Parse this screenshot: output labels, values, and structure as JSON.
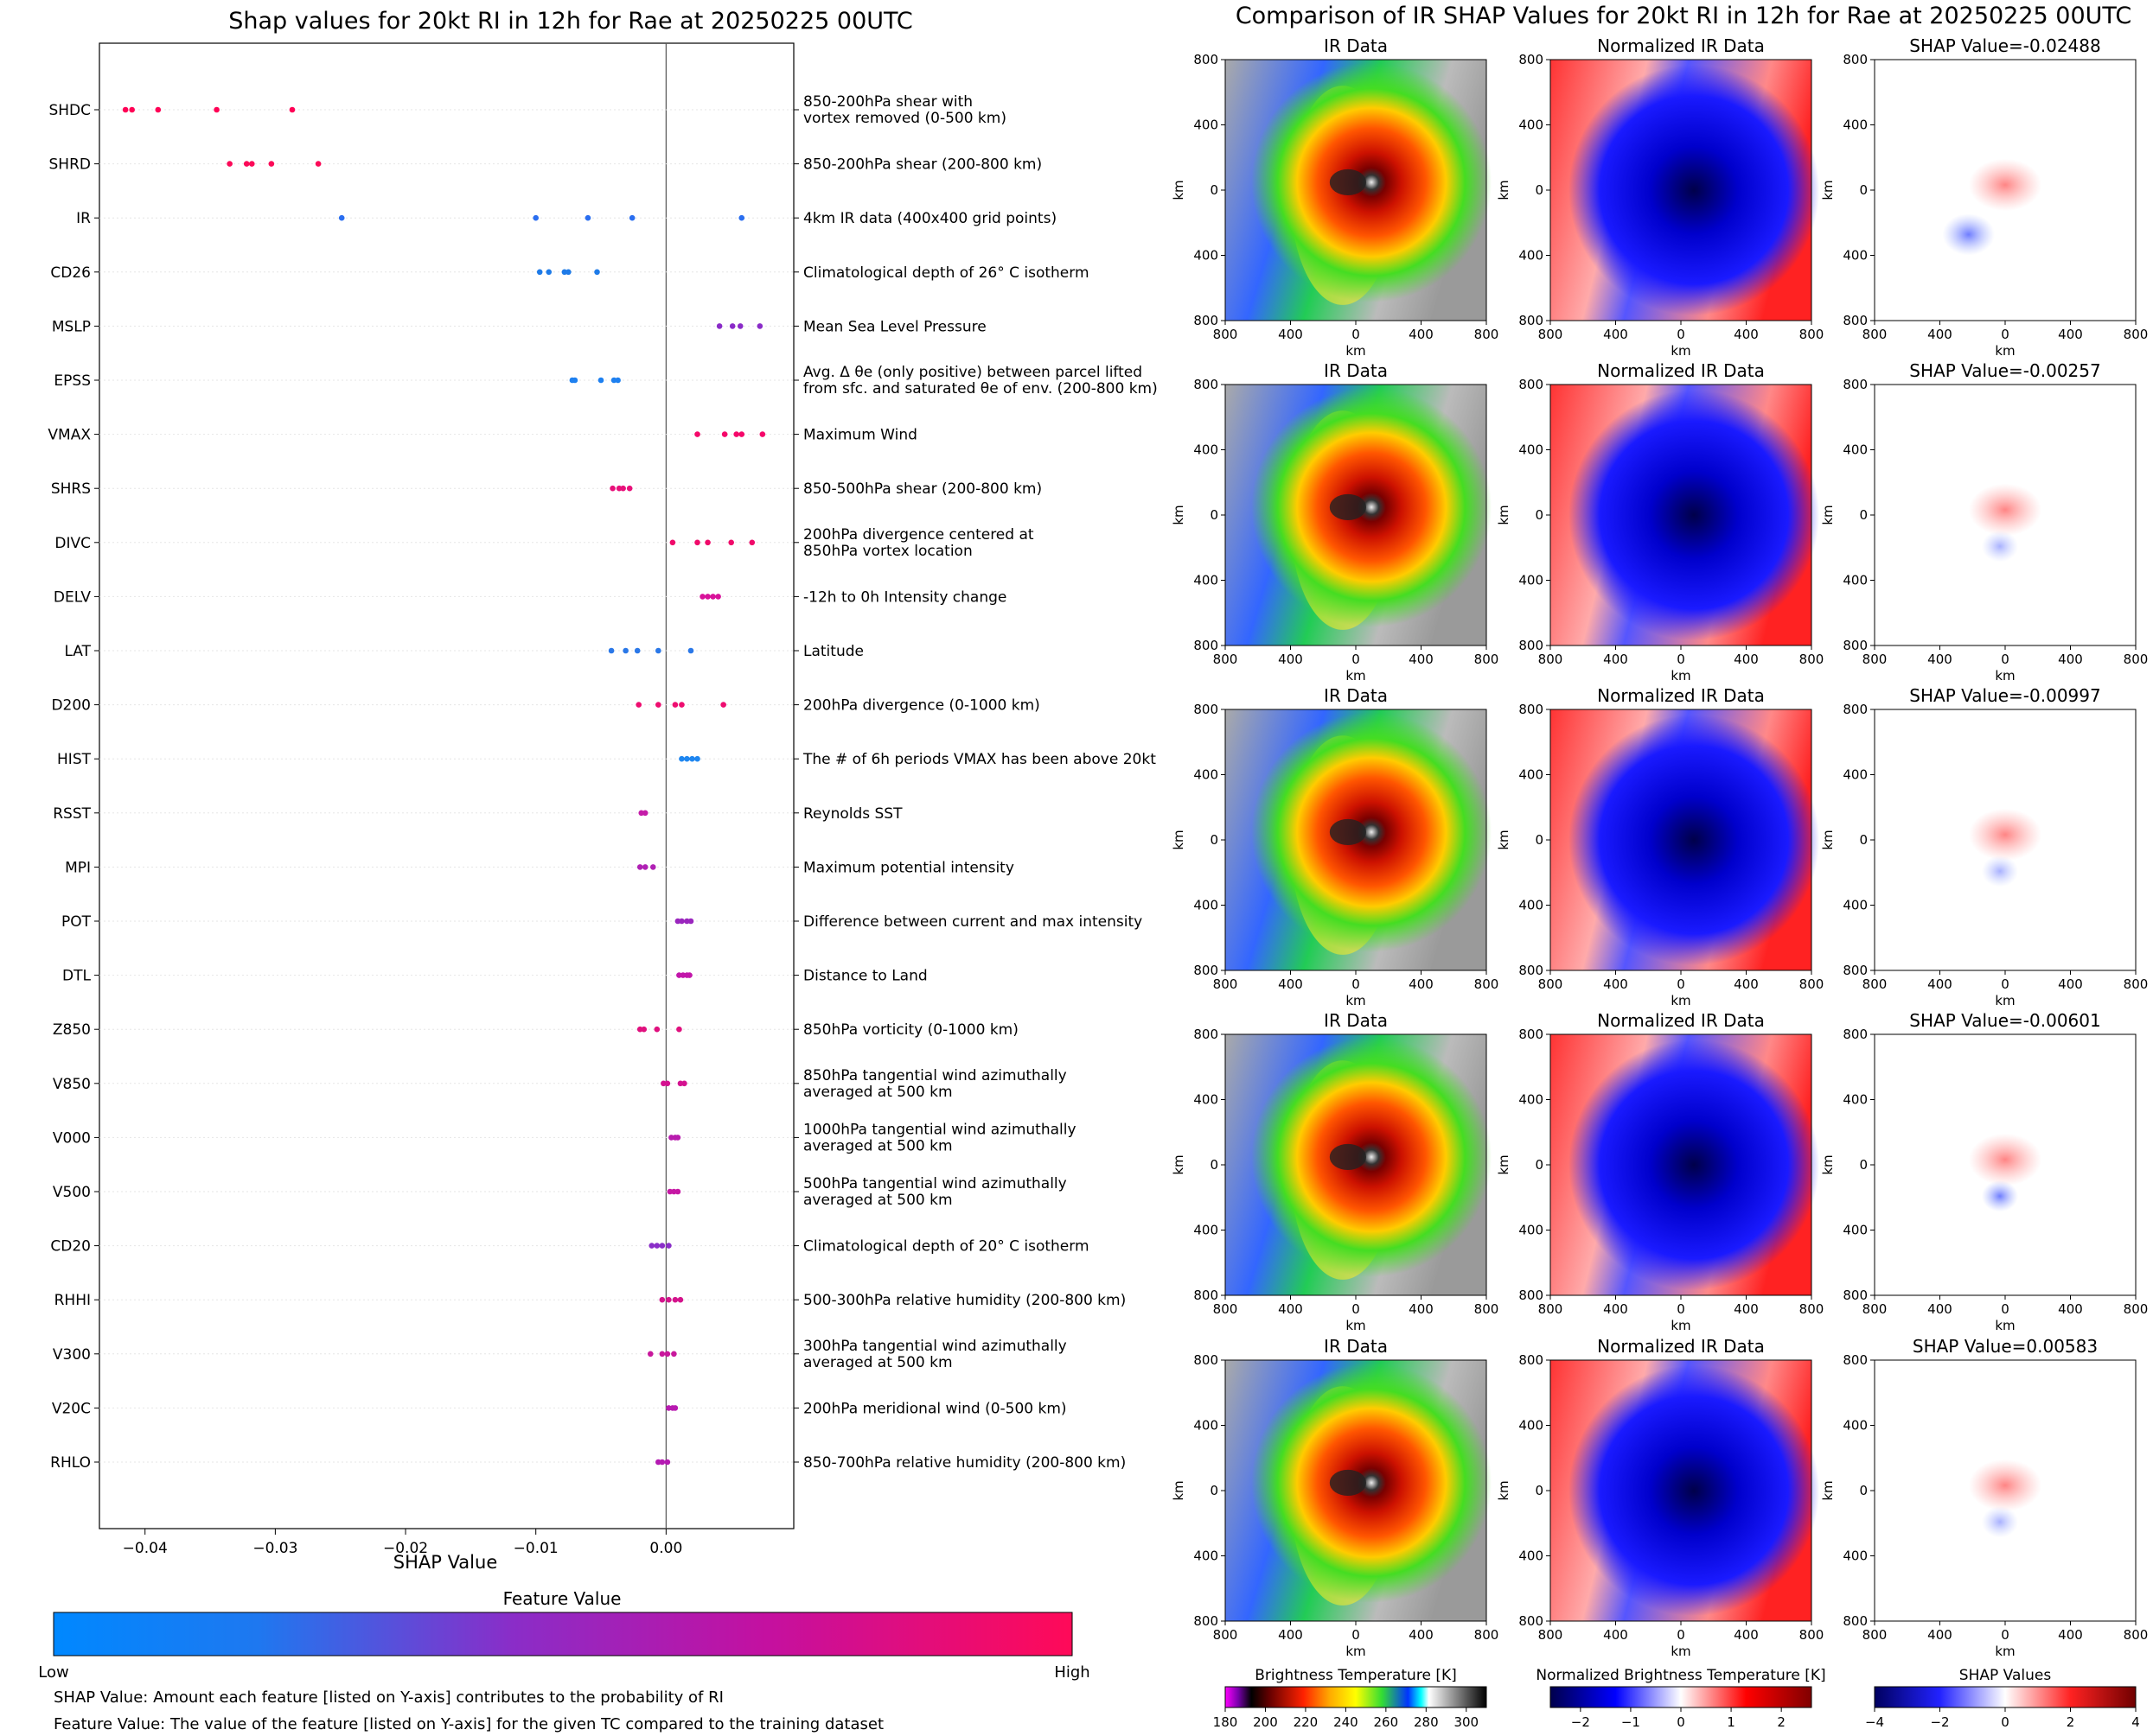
{
  "left_chart": {
    "chart_data": {
      "type": "scatter",
      "title": "Shap values for 20kt RI in 12h for Rae at 20250225 00UTC",
      "xlabel": "SHAP Value",
      "xlim": [
        -0.0435,
        0.0098
      ],
      "xticks": [
        "−0.04",
        "−0.03",
        "−0.02",
        "−0.01",
        "0.00"
      ],
      "xtick_values": [
        -0.04,
        -0.03,
        -0.02,
        -0.01,
        0.0
      ],
      "features": [
        {
          "name": "SHDC",
          "desc": [
            "850-200hPa shear with",
            "vortex removed (0-500 km)"
          ],
          "values": [
            -0.0415,
            -0.041,
            -0.039,
            -0.0345,
            -0.0287
          ],
          "color": "#ff0055"
        },
        {
          "name": "SHRD",
          "desc": [
            "850-200hPa shear (200-800 km)"
          ],
          "values": [
            -0.0335,
            -0.0322,
            -0.0318,
            -0.0303,
            -0.0267
          ],
          "color": "#fb0a58"
        },
        {
          "name": "IR",
          "desc": [
            "4km IR data (400x400 grid points)"
          ],
          "values": [
            -0.0249,
            -0.01,
            -0.006,
            -0.0026,
            0.0058
          ],
          "color": "#2a6ef0"
        },
        {
          "name": "CD26",
          "desc": [
            "Climatological depth of 26° C isotherm"
          ],
          "values": [
            -0.0097,
            -0.009,
            -0.0078,
            -0.0075,
            -0.0053
          ],
          "color": "#1e7be8"
        },
        {
          "name": "MSLP",
          "desc": [
            "Mean Sea Level Pressure"
          ],
          "values": [
            0.0041,
            0.0051,
            0.0057,
            0.0072
          ],
          "color": "#8a2bc8"
        },
        {
          "name": "EPSS",
          "desc": [
            "Avg. Δ θe (only positive) between parcel lifted",
            "from sfc. and saturated θe of env. (200-800 km)"
          ],
          "values": [
            -0.0072,
            -0.007,
            -0.005,
            -0.004,
            -0.0037
          ],
          "color": "#1e80f0"
        },
        {
          "name": "VMAX",
          "desc": [
            "Maximum Wind"
          ],
          "values": [
            0.0024,
            0.0045,
            0.0054,
            0.0058,
            0.0074
          ],
          "color": "#f5086a"
        },
        {
          "name": "SHRS",
          "desc": [
            "850-500hPa shear (200-800 km)"
          ],
          "values": [
            -0.0041,
            -0.0036,
            -0.0033,
            -0.0028
          ],
          "color": "#e8107a"
        },
        {
          "name": "DIVC",
          "desc": [
            "200hPa divergence centered at",
            "850hPa vortex location"
          ],
          "values": [
            0.0005,
            0.0024,
            0.0032,
            0.005,
            0.0066
          ],
          "color": "#f00a6a"
        },
        {
          "name": "DELV",
          "desc": [
            "-12h to 0h Intensity change"
          ],
          "values": [
            0.0028,
            0.0032,
            0.0036,
            0.004
          ],
          "color": "#d8129a"
        },
        {
          "name": "LAT",
          "desc": [
            "Latitude"
          ],
          "values": [
            -0.0042,
            -0.0031,
            -0.0022,
            -0.0006,
            0.0019
          ],
          "color": "#2a78e8"
        },
        {
          "name": "D200",
          "desc": [
            "200hPa divergence (0-1000 km)"
          ],
          "values": [
            -0.0021,
            -0.0006,
            0.0007,
            0.0012,
            0.0044
          ],
          "color": "#ee0e70"
        },
        {
          "name": "HIST",
          "desc": [
            "The # of 6h periods VMAX has been above 20kt"
          ],
          "values": [
            0.0012,
            0.0016,
            0.002,
            0.0024
          ],
          "color": "#1e86f0"
        },
        {
          "name": "RSST",
          "desc": [
            "Reynolds SST"
          ],
          "values": [
            -0.0019,
            -0.0016
          ],
          "color": "#c41ca8"
        },
        {
          "name": "MPI",
          "desc": [
            "Maximum potential intensity"
          ],
          "values": [
            -0.002,
            -0.0016,
            -0.001
          ],
          "color": "#b020b4"
        },
        {
          "name": "POT",
          "desc": [
            "Difference between current and max intensity"
          ],
          "values": [
            0.0009,
            0.0012,
            0.0016,
            0.0019
          ],
          "color": "#9a26be"
        },
        {
          "name": "DTL",
          "desc": [
            "Distance to Land"
          ],
          "values": [
            0.001,
            0.0013,
            0.0016,
            0.0018
          ],
          "color": "#c216aa"
        },
        {
          "name": "Z850",
          "desc": [
            "850hPa vorticity (0-1000 km)"
          ],
          "values": [
            -0.002,
            -0.0017,
            -0.0007,
            0.001
          ],
          "color": "#e0107e"
        },
        {
          "name": "V850",
          "desc": [
            "850hPa tangential wind azimuthally",
            "averaged at 500 km"
          ],
          "values": [
            -0.0002,
            0.0001,
            0.0011,
            0.0014
          ],
          "color": "#d41290"
        },
        {
          "name": "V000",
          "desc": [
            "1000hPa tangential wind azimuthally",
            "averaged at 500 km"
          ],
          "values": [
            0.0004,
            0.0007,
            0.0009
          ],
          "color": "#b81cae"
        },
        {
          "name": "V500",
          "desc": [
            "500hPa tangential wind azimuthally",
            "averaged at 500 km"
          ],
          "values": [
            0.0003,
            0.0006,
            0.0009
          ],
          "color": "#c618a4"
        },
        {
          "name": "CD20",
          "desc": [
            "Climatological depth of 20° C isotherm"
          ],
          "values": [
            -0.0011,
            -0.0007,
            -0.0003,
            0.0002
          ],
          "color": "#8a2ec8"
        },
        {
          "name": "RHHI",
          "desc": [
            "500-300hPa relative humidity (200-800 km)"
          ],
          "values": [
            -0.0003,
            0.0002,
            0.0007,
            0.0011
          ],
          "color": "#d4148c"
        },
        {
          "name": "V300",
          "desc": [
            "300hPa tangential wind azimuthally",
            "averaged at 500 km"
          ],
          "values": [
            -0.0012,
            -0.0003,
            0.0001,
            0.0006
          ],
          "color": "#c8189c"
        },
        {
          "name": "V20C",
          "desc": [
            "200hPa meridional wind (0-500 km)"
          ],
          "values": [
            0.0002,
            0.0005,
            0.0007
          ],
          "color": "#b81ab0"
        },
        {
          "name": "RHLO",
          "desc": [
            "850-700hPa relative humidity (200-800 km)"
          ],
          "values": [
            -0.0006,
            -0.0003,
            0.0001
          ],
          "color": "#b41ab2"
        }
      ]
    },
    "colorbar": {
      "title": "Feature Value",
      "low": "Low",
      "high": "High",
      "colors": [
        "#0088ff",
        "#1e78f0",
        "#8a2dc8",
        "#c410a0",
        "#ff0a58"
      ]
    },
    "notes": [
      "SHAP Value: Amount each feature [listed on Y-axis] contributes to the probability of RI",
      "Feature Value: The value of the feature [listed on Y-axis] for the given TC compared to the training dataset"
    ]
  },
  "right_panel": {
    "title": "Comparison of IR SHAP Values for 20kt RI in 12h for Rae at 20250225 00UTC",
    "col_titles": [
      "IR Data",
      "Normalized IR Data"
    ],
    "shap_titles": [
      "SHAP Value=-0.02488",
      "SHAP Value=-0.00257",
      "SHAP Value=-0.00997",
      "SHAP Value=-0.00601",
      "SHAP Value=0.00583"
    ],
    "axis_unit": "km",
    "axis_ticks": [
      "800",
      "400",
      "0",
      "400",
      "800"
    ],
    "colorbars": [
      {
        "title": "Brightness Temperature [K]",
        "ticks": [
          "180",
          "200",
          "220",
          "240",
          "260",
          "280",
          "300"
        ]
      },
      {
        "title": "Normalized Brightness Temperature [K]",
        "ticks": [
          "−2",
          "−1",
          "0",
          "1",
          "2"
        ]
      },
      {
        "title": "SHAP Values",
        "ticks": [
          "−4",
          "−2",
          "0",
          "2",
          "4"
        ],
        "offset": "1e−5"
      }
    ]
  }
}
